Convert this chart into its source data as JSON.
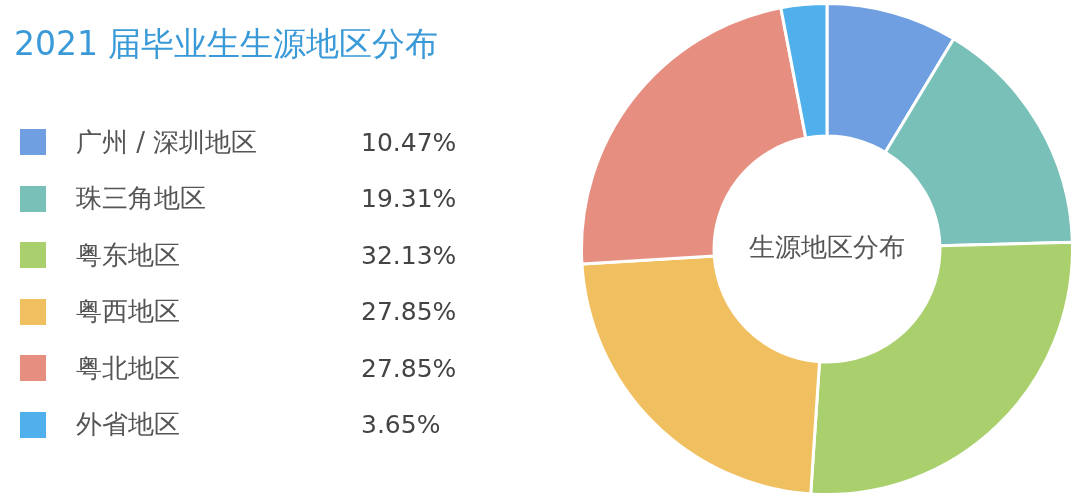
{
  "chart_data": {
    "type": "donut",
    "title": "2021 届毕业生生源地区分布",
    "categories": [
      "广州 / 深圳地区",
      "珠三角地区",
      "粤东地区",
      "粤西地区",
      "粤北地区",
      "外省地区"
    ],
    "values": [
      10.47,
      19.31,
      32.13,
      27.85,
      27.85,
      3.65
    ],
    "colors": [
      "#6f9fe0",
      "#78c0b8",
      "#a9d06c",
      "#f0c060",
      "#e68f80",
      "#50b0ec"
    ],
    "annotations": [
      "生源地区分布"
    ],
    "value_labels": [
      "10.47%",
      "19.31%",
      "32.13%",
      "27.85%",
      "27.85%",
      "3.65%"
    ],
    "legend": "left"
  }
}
